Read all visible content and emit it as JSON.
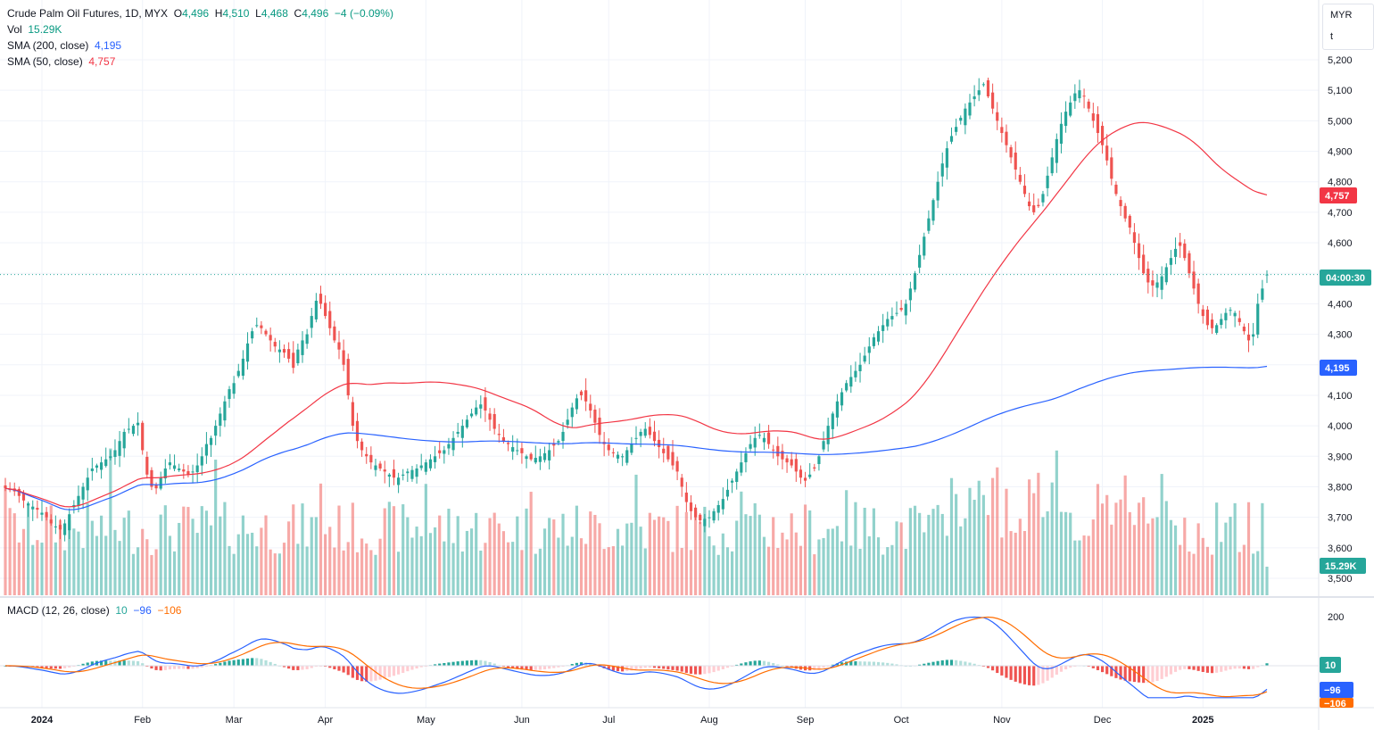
{
  "header": {
    "symbol": "Crude Palm Oil Futures, 1D, MYX",
    "o_label": "O",
    "o_value": "4,496",
    "h_label": "H",
    "h_value": "4,510",
    "l_label": "L",
    "l_value": "4,468",
    "c_label": "C",
    "c_value": "4,496",
    "change": "−4 (−0.09%)"
  },
  "volume": {
    "label": "Vol",
    "value": "15.29K"
  },
  "sma200": {
    "label": "SMA (200, close)",
    "value": "4,195"
  },
  "sma50": {
    "label": "SMA (50, close)",
    "value": "4,757"
  },
  "macd": {
    "label": "MACD (12, 26, close)",
    "hist": "10",
    "macd_value": "−96",
    "signal_value": "−106"
  },
  "scale": {
    "currency": "MYR",
    "unit": "t"
  },
  "badges": {
    "countdown": "04:00:30",
    "sma50": "4,757",
    "sma200": "4,195",
    "volume": "15.29K",
    "macd_hist": "10",
    "macd_line": "−96",
    "signal_line": "−106"
  },
  "colors": {
    "up": "#26a69a",
    "down": "#ef5350",
    "sma200": "#2962ff",
    "sma50": "#f23645",
    "macd": "#2962ff",
    "signal": "#ff6d00"
  },
  "chart_data": {
    "type": "candlestick",
    "title": "Crude Palm Oil Futures, 1D, MYX",
    "y_ticks": [
      3500,
      3600,
      3700,
      3800,
      3900,
      4000,
      4100,
      4200,
      4300,
      4400,
      4500,
      4600,
      4700,
      4800,
      4900,
      5000,
      5100,
      5200
    ],
    "y_tick_labels": [
      "3,500",
      "3,600",
      "3,700",
      "3,800",
      "3,900",
      "4,000",
      "4,100",
      "4,200",
      "4,300",
      "4,400",
      "4,500",
      "4,600",
      "4,700",
      "4,800",
      "4,900",
      "5,000",
      "5,100",
      "5,200"
    ],
    "macd_ticks": [
      200
    ],
    "macd_tick_labels": [
      "200"
    ],
    "x_labels": [
      "2024",
      "Feb",
      "Mar",
      "Apr",
      "May",
      "Jun",
      "Jul",
      "Aug",
      "Sep",
      "Oct",
      "Nov",
      "Dec",
      "2025"
    ],
    "x_label_bars": [
      8,
      30,
      50,
      70,
      92,
      113,
      132,
      154,
      175,
      196,
      218,
      240,
      262
    ],
    "closes": [
      3795,
      3790,
      3785,
      3770,
      3755,
      3745,
      3735,
      3725,
      3715,
      3700,
      3680,
      3670,
      3660,
      3680,
      3710,
      3740,
      3770,
      3800,
      3830,
      3860,
      3870,
      3880,
      3890,
      3900,
      3920,
      3950,
      3980,
      3990,
      4000,
      4010,
      3920,
      3840,
      3800,
      3795,
      3830,
      3860,
      3880,
      3870,
      3860,
      3850,
      3840,
      3850,
      3870,
      3900,
      3940,
      3960,
      4000,
      4040,
      4080,
      4120,
      4140,
      4180,
      4220,
      4270,
      4310,
      4330,
      4320,
      4300,
      4280,
      4260,
      4250,
      4240,
      4220,
      4190,
      4250,
      4280,
      4300,
      4360,
      4410,
      4400,
      4360,
      4320,
      4280,
      4250,
      4200,
      4100,
      4000,
      3950,
      3920,
      3900,
      3880,
      3870,
      3860,
      3850,
      3840,
      3830,
      3830,
      3840,
      3850,
      3855,
      3860,
      3870,
      3880,
      3890,
      3900,
      3910,
      3920,
      3940,
      3960,
      3980,
      4000,
      4020,
      4040,
      4060,
      4070,
      4050,
      4020,
      3990,
      3970,
      3950,
      3940,
      3930,
      3920,
      3910,
      3900,
      3890,
      3895,
      3900,
      3910,
      3920,
      3935,
      3950,
      3980,
      4020,
      4060,
      4090,
      4100,
      4080,
      4050,
      4010,
      3970,
      3940,
      3920,
      3910,
      3905,
      3900,
      3920,
      3940,
      3960,
      3980,
      3990,
      3970,
      3950,
      3930,
      3910,
      3890,
      3870,
      3850,
      3800,
      3750,
      3720,
      3700,
      3690,
      3695,
      3700,
      3720,
      3740,
      3760,
      3790,
      3820,
      3850,
      3880,
      3910,
      3940,
      3960,
      3970,
      3960,
      3940,
      3920,
      3900,
      3890,
      3880,
      3870,
      3850,
      3830,
      3820,
      3840,
      3860,
      3900,
      3950,
      4000,
      4040,
      4080,
      4110,
      4140,
      4160,
      4180,
      4200,
      4230,
      4260,
      4290,
      4310,
      4330,
      4350,
      4360,
      4370,
      4380,
      4400,
      4450,
      4500,
      4560,
      4620,
      4680,
      4740,
      4800,
      4860,
      4910,
      4950,
      4980,
      5010,
      5040,
      5060,
      5080,
      5100,
      5120,
      5080,
      5040,
      5000,
      4960,
      4920,
      4880,
      4840,
      4800,
      4760,
      4720,
      4700,
      4720,
      4760,
      4820,
      4880,
      4940,
      4990,
      5030,
      5060,
      5090,
      5100,
      5080,
      5040,
      5000,
      4960,
      4920,
      4870,
      4810,
      4760,
      4720,
      4680,
      4650,
      4600,
      4550,
      4500,
      4470,
      4460,
      4470,
      4490,
      4520,
      4550,
      4580,
      4590,
      4550,
      4500,
      4450,
      4400,
      4360,
      4330,
      4320,
      4330,
      4350,
      4370,
      4380,
      4370,
      4340,
      4310,
      4280,
      4300,
      4400,
      4450,
      4496
    ],
    "opens_offset": "derived",
    "last": {
      "open": 4496,
      "high": 4510,
      "low": 4468,
      "close": 4496
    },
    "sma200_last": 4195,
    "sma50_last": 4757,
    "macd_last": {
      "hist": 10,
      "macd": -96,
      "signal": -106
    }
  }
}
